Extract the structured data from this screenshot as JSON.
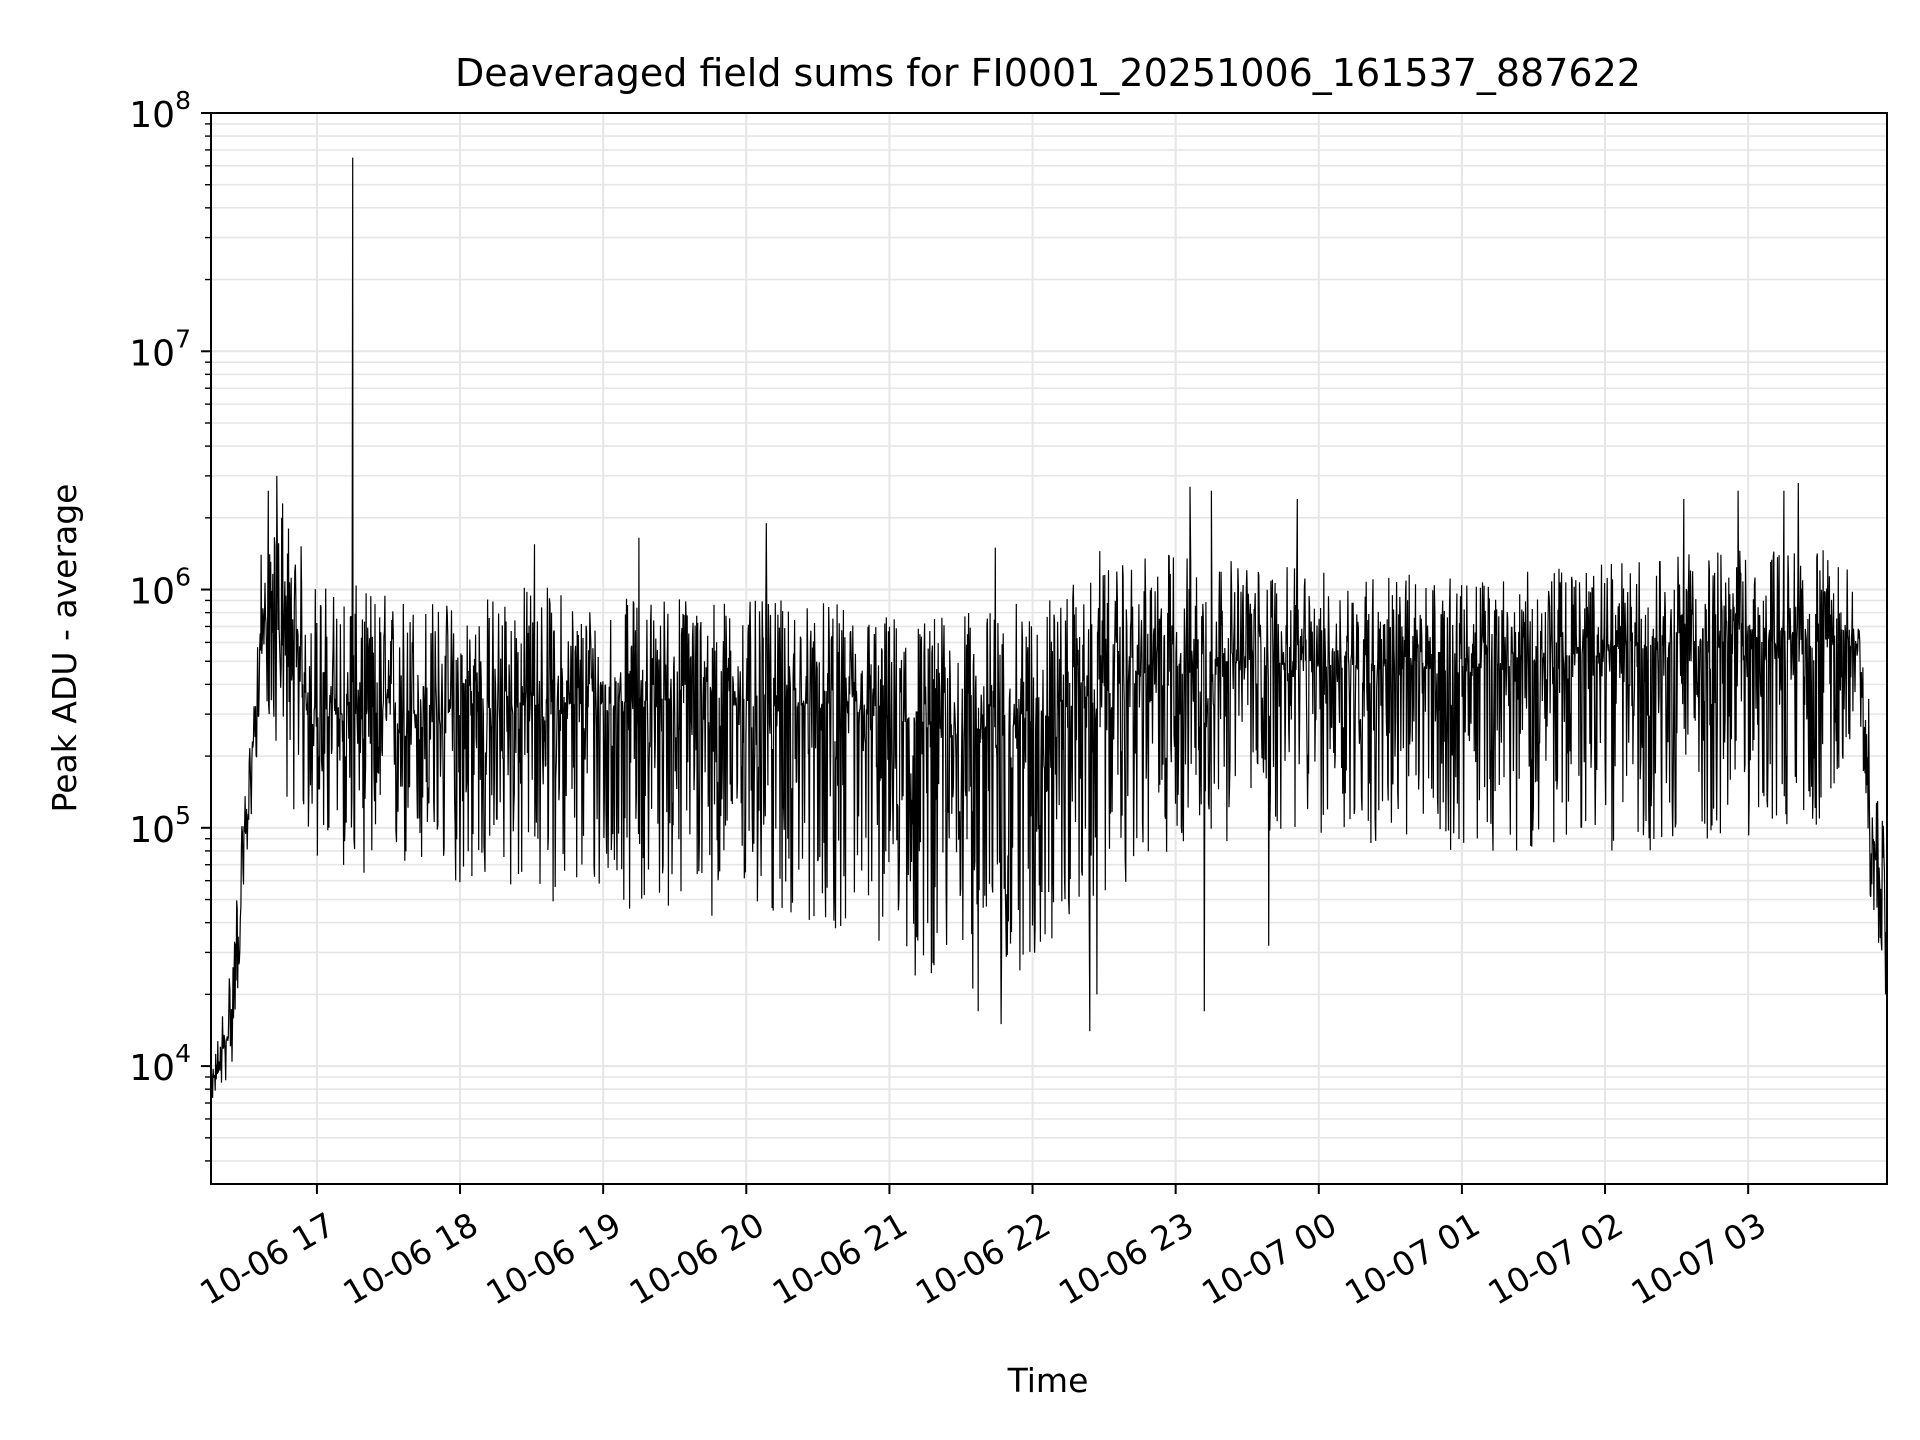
{
  "chart_data": {
    "type": "line",
    "title": "Deaveraged field sums for FI0001_20251006_161537_887622",
    "xlabel": "Time",
    "ylabel": "Peak ADU - average",
    "yscale": "log",
    "ylim": [
      3200,
      100000000
    ],
    "xlim_hours": [
      16.26,
      27.97
    ],
    "x_ticks": [
      {
        "hour": 17,
        "label": "10-06 17"
      },
      {
        "hour": 18,
        "label": "10-06 18"
      },
      {
        "hour": 19,
        "label": "10-06 19"
      },
      {
        "hour": 20,
        "label": "10-06 20"
      },
      {
        "hour": 21,
        "label": "10-06 21"
      },
      {
        "hour": 22,
        "label": "10-06 22"
      },
      {
        "hour": 23,
        "label": "10-06 23"
      },
      {
        "hour": 24,
        "label": "10-07 00"
      },
      {
        "hour": 25,
        "label": "10-07 01"
      },
      {
        "hour": 26,
        "label": "10-07 02"
      },
      {
        "hour": 27,
        "label": "10-07 03"
      }
    ],
    "y_ticks": [
      {
        "value": 10000,
        "base": "10",
        "exp": "4"
      },
      {
        "value": 100000,
        "base": "10",
        "exp": "5"
      },
      {
        "value": 1000000,
        "base": "10",
        "exp": "6"
      },
      {
        "value": 10000000,
        "base": "10",
        "exp": "7"
      },
      {
        "value": 100000000,
        "base": "10",
        "exp": "8"
      }
    ],
    "grid": true,
    "series": [
      {
        "name": "Deaveraged field sum",
        "color": "#000000",
        "envelope": [
          {
            "hour": 16.26,
            "min": 7000,
            "max": 9000,
            "median": 8000
          },
          {
            "hour": 16.4,
            "min": 9000,
            "max": 30000,
            "median": 15000
          },
          {
            "hour": 16.5,
            "min": 50000,
            "max": 150000,
            "median": 90000
          },
          {
            "hour": 16.62,
            "min": 400000,
            "max": 1000000,
            "median": 700000
          },
          {
            "hour": 16.75,
            "min": 150000,
            "max": 2500000,
            "median": 600000
          },
          {
            "hour": 17.0,
            "min": 70000,
            "max": 1100000,
            "median": 300000
          },
          {
            "hour": 17.5,
            "min": 60000,
            "max": 1000000,
            "median": 300000
          },
          {
            "hour": 18.0,
            "min": 55000,
            "max": 900000,
            "median": 300000
          },
          {
            "hour": 18.5,
            "min": 50000,
            "max": 1100000,
            "median": 330000
          },
          {
            "hour": 19.0,
            "min": 45000,
            "max": 900000,
            "median": 330000
          },
          {
            "hour": 19.5,
            "min": 45000,
            "max": 1000000,
            "median": 350000
          },
          {
            "hour": 20.0,
            "min": 40000,
            "max": 900000,
            "median": 340000
          },
          {
            "hour": 20.5,
            "min": 38000,
            "max": 900000,
            "median": 320000
          },
          {
            "hour": 21.0,
            "min": 30000,
            "max": 800000,
            "median": 280000
          },
          {
            "hour": 21.5,
            "min": 20000,
            "max": 800000,
            "median": 250000
          },
          {
            "hour": 22.0,
            "min": 25000,
            "max": 900000,
            "median": 280000
          },
          {
            "hour": 22.5,
            "min": 50000,
            "max": 1200000,
            "median": 380000
          },
          {
            "hour": 23.0,
            "min": 80000,
            "max": 1500000,
            "median": 500000
          },
          {
            "hour": 23.5,
            "min": 90000,
            "max": 1300000,
            "median": 500000
          },
          {
            "hour": 24.0,
            "min": 90000,
            "max": 1200000,
            "median": 480000
          },
          {
            "hour": 24.5,
            "min": 80000,
            "max": 1200000,
            "median": 480000
          },
          {
            "hour": 25.0,
            "min": 80000,
            "max": 1100000,
            "median": 450000
          },
          {
            "hour": 25.5,
            "min": 80000,
            "max": 1200000,
            "median": 500000
          },
          {
            "hour": 26.0,
            "min": 80000,
            "max": 1300000,
            "median": 550000
          },
          {
            "hour": 26.5,
            "min": 80000,
            "max": 1400000,
            "median": 600000
          },
          {
            "hour": 27.0,
            "min": 90000,
            "max": 1500000,
            "median": 600000
          },
          {
            "hour": 27.5,
            "min": 100000,
            "max": 1500000,
            "median": 620000
          },
          {
            "hour": 27.78,
            "min": 300000,
            "max": 1200000,
            "median": 600000
          },
          {
            "hour": 27.85,
            "min": 50000,
            "max": 300000,
            "median": 100000
          },
          {
            "hour": 27.97,
            "min": 20000,
            "max": 80000,
            "median": 40000
          }
        ],
        "spikes": [
          {
            "hour": 16.61,
            "value": 1400000
          },
          {
            "hour": 16.66,
            "value": 2600000
          },
          {
            "hour": 16.72,
            "value": 3000000
          },
          {
            "hour": 16.76,
            "value": 2300000
          },
          {
            "hour": 17.25,
            "value": 65000000
          },
          {
            "hour": 18.52,
            "value": 1550000
          },
          {
            "hour": 19.25,
            "value": 1650000
          },
          {
            "hour": 20.14,
            "value": 1900000
          },
          {
            "hour": 21.74,
            "value": 1500000
          },
          {
            "hour": 22.47,
            "value": 1450000
          },
          {
            "hour": 23.1,
            "value": 2700000
          },
          {
            "hour": 23.25,
            "value": 2600000
          },
          {
            "hour": 23.85,
            "value": 2400000
          },
          {
            "hour": 26.55,
            "value": 2400000
          },
          {
            "hour": 26.93,
            "value": 2600000
          },
          {
            "hour": 27.25,
            "value": 2600000
          },
          {
            "hour": 27.35,
            "value": 2800000
          },
          {
            "hour": 21.18,
            "value": 24000
          },
          {
            "hour": 21.62,
            "value": 17000
          },
          {
            "hour": 21.78,
            "value": 15000
          },
          {
            "hour": 22.4,
            "value": 14000
          },
          {
            "hour": 22.45,
            "value": 20000
          },
          {
            "hour": 23.2,
            "value": 17000
          },
          {
            "hour": 23.65,
            "value": 32000
          },
          {
            "hour": 27.96,
            "value": 20000
          }
        ]
      }
    ]
  }
}
